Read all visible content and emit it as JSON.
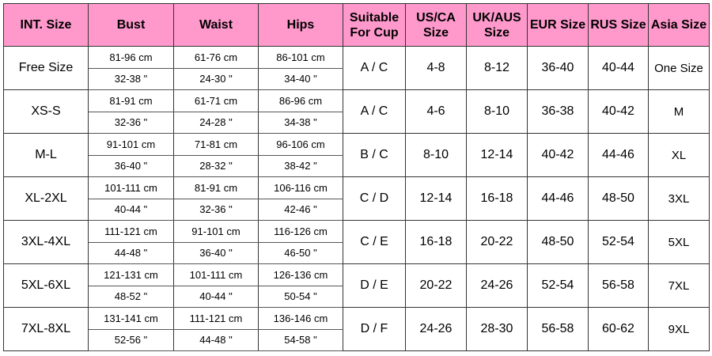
{
  "header_color": "#ff99cc",
  "headers": [
    "INT. Size",
    "Bust",
    "Waist",
    "Hips",
    "Suitable For Cup",
    "US/CA Size",
    "UK/AUS Size",
    "EUR Size",
    "RUS Size",
    "Asia Size"
  ],
  "rows": [
    {
      "int": "Free Size",
      "bust_cm": "81-96 cm",
      "bust_in": "32-38 \"",
      "waist_cm": "61-76 cm",
      "waist_in": "24-30 \"",
      "hips_cm": "86-101 cm",
      "hips_in": "34-40 \"",
      "cup": "A / C",
      "us": "4-8",
      "uk": "8-12",
      "eur": "36-40",
      "rus": "40-44",
      "asia": "One Size"
    },
    {
      "int": "XS-S",
      "bust_cm": "81-91 cm",
      "bust_in": "32-36 \"",
      "waist_cm": "61-71 cm",
      "waist_in": "24-28 \"",
      "hips_cm": "86-96 cm",
      "hips_in": "34-38 \"",
      "cup": "A / C",
      "us": "4-6",
      "uk": "8-10",
      "eur": "36-38",
      "rus": "40-42",
      "asia": "M"
    },
    {
      "int": "M-L",
      "bust_cm": "91-101 cm",
      "bust_in": "36-40 \"",
      "waist_cm": "71-81 cm",
      "waist_in": "28-32 \"",
      "hips_cm": "96-106 cm",
      "hips_in": "38-42 \"",
      "cup": "B / C",
      "us": "8-10",
      "uk": "12-14",
      "eur": "40-42",
      "rus": "44-46",
      "asia": "XL"
    },
    {
      "int": "XL-2XL",
      "bust_cm": "101-111 cm",
      "bust_in": "40-44 \"",
      "waist_cm": "81-91 cm",
      "waist_in": "32-36 \"",
      "hips_cm": "106-116 cm",
      "hips_in": "42-46 \"",
      "cup": "C / D",
      "us": "12-14",
      "uk": "16-18",
      "eur": "44-46",
      "rus": "48-50",
      "asia": "3XL"
    },
    {
      "int": "3XL-4XL",
      "bust_cm": "111-121 cm",
      "bust_in": "44-48 \"",
      "waist_cm": "91-101 cm",
      "waist_in": "36-40 \"",
      "hips_cm": "116-126 cm",
      "hips_in": "46-50 \"",
      "cup": "C / E",
      "us": "16-18",
      "uk": "20-22",
      "eur": "48-50",
      "rus": "52-54",
      "asia": "5XL"
    },
    {
      "int": "5XL-6XL",
      "bust_cm": "121-131 cm",
      "bust_in": "48-52 \"",
      "waist_cm": "101-111 cm",
      "waist_in": "40-44 \"",
      "hips_cm": "126-136 cm",
      "hips_in": "50-54 \"",
      "cup": "D / E",
      "us": "20-22",
      "uk": "24-26",
      "eur": "52-54",
      "rus": "56-58",
      "asia": "7XL"
    },
    {
      "int": "7XL-8XL",
      "bust_cm": "131-141 cm",
      "bust_in": "52-56 \"",
      "waist_cm": "111-121 cm",
      "waist_in": "44-48 \"",
      "hips_cm": "136-146 cm",
      "hips_in": "54-58 \"",
      "cup": "D / F",
      "us": "24-26",
      "uk": "28-30",
      "eur": "56-58",
      "rus": "60-62",
      "asia": "9XL"
    }
  ]
}
